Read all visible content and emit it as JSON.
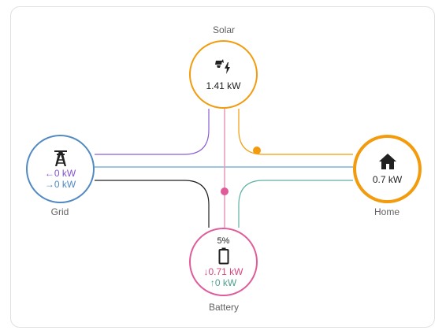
{
  "solar": {
    "label": "Solar",
    "power": "1.41 kW",
    "icon": "solar-power-icon",
    "color": "#f29b0c"
  },
  "grid": {
    "label": "Grid",
    "import": "0 kW",
    "export": "0 kW",
    "icon": "transmission-tower-icon",
    "color": "#5189c3",
    "import_arrow": "←",
    "export_arrow": "→"
  },
  "home": {
    "label": "Home",
    "power": "0.7 kW",
    "icon": "home-icon",
    "color": "#f29b0c"
  },
  "battery": {
    "label": "Battery",
    "soc": "5%",
    "out": "0.71 kW",
    "in": "0 kW",
    "icon": "battery-outline-icon",
    "color": "#e05b9a",
    "out_arrow": "↓",
    "in_arrow": "↑"
  }
}
